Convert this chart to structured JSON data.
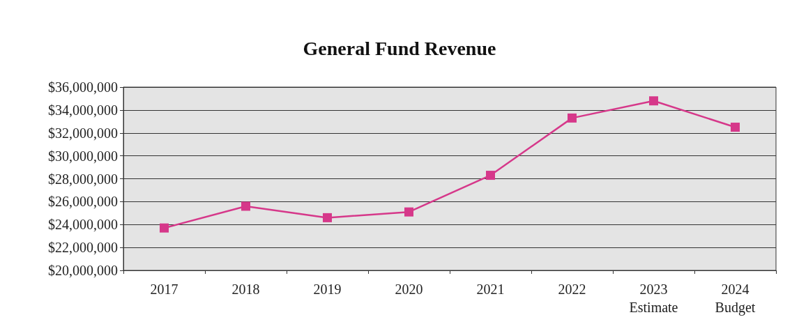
{
  "chart_data": {
    "type": "line",
    "title": "General Fund Revenue",
    "categories": [
      "2017",
      "2018",
      "2019",
      "2020",
      "2021",
      "2022",
      "2023\nEstimate",
      "2024\nBudget"
    ],
    "series": [
      {
        "color": "#d6388a",
        "values": [
          23700000,
          25600000,
          24600000,
          25100000,
          28300000,
          33300000,
          34800000,
          32500000
        ]
      }
    ],
    "ylim": [
      20000000,
      36000000
    ],
    "yticks": [
      {
        "value": 20000000,
        "label": "$20,000,000"
      },
      {
        "value": 22000000,
        "label": "$22,000,000"
      },
      {
        "value": 24000000,
        "label": "$24,000,000"
      },
      {
        "value": 26000000,
        "label": "$26,000,000"
      },
      {
        "value": 28000000,
        "label": "$28,000,000"
      },
      {
        "value": 30000000,
        "label": "$30,000,000"
      },
      {
        "value": 32000000,
        "label": "$32,000,000"
      },
      {
        "value": 34000000,
        "label": "$34,000,000"
      },
      {
        "value": 36000000,
        "label": "$36,000,000"
      }
    ],
    "grid": "y",
    "marker": "square",
    "line_style": "solid"
  }
}
